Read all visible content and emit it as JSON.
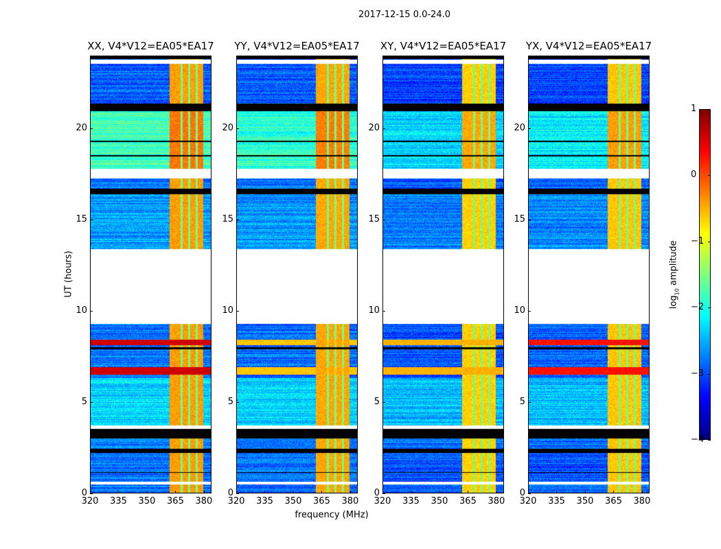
{
  "chart_data": {
    "type": "heatmap",
    "title": "2017-12-15 0.0-24.0",
    "xlabel": "frequency (MHz)",
    "ylabel": "UT (hours)",
    "xlim": [
      320,
      384
    ],
    "ylim": [
      0,
      24
    ],
    "xticks": [
      320,
      335,
      350,
      365,
      380
    ],
    "yticks": [
      0,
      5,
      10,
      15,
      20
    ],
    "colormap": "jet",
    "colorbar": {
      "label_prefix": "log",
      "label_sub": "10",
      "label_suffix": " amplitude",
      "range": [
        -4,
        1
      ],
      "ticks": [
        1,
        0,
        -1,
        -2,
        -3,
        -4
      ],
      "tick_labels": [
        "1",
        "0",
        "−1",
        "−2",
        "−3",
        "−4"
      ]
    },
    "panels": [
      {
        "title": "XX, V4*V12=EA05*EA17",
        "offset": 0.0,
        "strong_row_level": 0.6
      },
      {
        "title": "YY, V4*V12=EA05*EA17",
        "offset": -0.1,
        "strong_row_level": -0.6
      },
      {
        "title": "XY, V4*V12=EA05*EA17",
        "offset": -0.5,
        "strong_row_level": -0.5
      },
      {
        "title": "YX, V4*V12=EA05*EA17",
        "offset": -0.4,
        "strong_row_level": 0.3
      }
    ],
    "segments_hours": [
      {
        "t0": 0,
        "t1": 2.2,
        "level": -2.8
      },
      {
        "t0": 2.4,
        "t1": 3.0,
        "level": -2.7
      },
      {
        "t0": 3.7,
        "t1": 6.3,
        "level": -2.3
      },
      {
        "t0": 6.3,
        "t1": 9.3,
        "level": -2.8
      },
      {
        "t0": 13.4,
        "t1": 16.4,
        "level": -2.6
      },
      {
        "t0": 16.7,
        "t1": 17.3,
        "level": -2.8
      },
      {
        "t0": 17.8,
        "t1": 21.0,
        "level": -1.8
      },
      {
        "t0": 21.4,
        "t1": 24.0,
        "level": -2.9
      }
    ],
    "blank_hours": [
      [
        9.3,
        13.4
      ],
      [
        17.3,
        17.8
      ],
      [
        3.5,
        3.7
      ],
      [
        0.45,
        0.6
      ],
      [
        23.6,
        23.8
      ]
    ],
    "flagged_black_hours": [
      [
        21.0,
        21.4
      ],
      [
        16.4,
        16.7
      ],
      [
        3.0,
        3.4
      ],
      [
        2.2,
        2.4
      ],
      [
        23.85,
        24.0
      ],
      [
        7.9,
        8.0
      ],
      [
        1.1,
        1.15
      ],
      [
        19.3,
        19.35
      ],
      [
        18.5,
        18.55
      ]
    ],
    "strong_rows_hours": [
      [
        8.1,
        8.4
      ],
      [
        6.5,
        6.9
      ]
    ],
    "rfi_band_mhz": [
      362,
      380
    ],
    "rfi_level": -0.4,
    "rfi_gaps_mhz": [
      368.5,
      372.5,
      376.5
    ]
  }
}
